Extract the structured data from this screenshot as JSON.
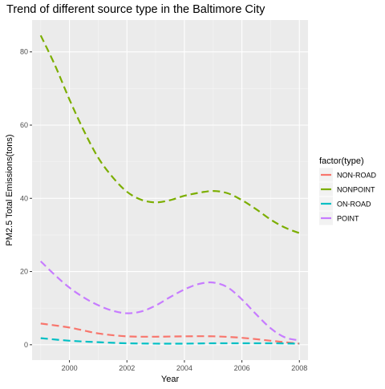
{
  "chart_data": {
    "type": "line",
    "title": "Trend of different source type in the Baltimore City",
    "xlabel": "Year",
    "ylabel": "PM2.5 Total Emissions(tons)",
    "xlim": [
      1998.7,
      2008.3
    ],
    "ylim": [
      -4.2,
      88.7
    ],
    "x_ticks": [
      2000,
      2002,
      2004,
      2006,
      2008
    ],
    "y_ticks": [
      0,
      20,
      40,
      60,
      80
    ],
    "grid": true,
    "legend": {
      "title": "factor(type)",
      "placement": "right",
      "entries": [
        "NON-ROAD",
        "NONPOINT",
        "ON-ROAD",
        "POINT"
      ]
    },
    "series": [
      {
        "name": "NON-ROAD",
        "color": "#F8766D",
        "x": [
          1999,
          2000,
          2001,
          2002,
          2003,
          2004,
          2005,
          2006,
          2007,
          2008
        ],
        "y": [
          5.8,
          4.7,
          3.1,
          2.3,
          2.2,
          2.3,
          2.3,
          1.9,
          1.1,
          0.3
        ]
      },
      {
        "name": "NONPOINT",
        "color": "#7CAE00",
        "x": [
          1999,
          1999.5,
          2000,
          2000.5,
          2001,
          2001.5,
          2002,
          2002.5,
          2003,
          2003.5,
          2004,
          2004.5,
          2005,
          2005.5,
          2006,
          2006.5,
          2007,
          2007.5,
          2008
        ],
        "y": [
          84.5,
          76.3,
          67.0,
          58.5,
          51.1,
          45.8,
          41.8,
          39.6,
          38.9,
          39.5,
          40.7,
          41.5,
          42.0,
          41.4,
          39.5,
          37.0,
          34.2,
          32.0,
          30.5
        ]
      },
      {
        "name": "ON-ROAD",
        "color": "#00BFC4",
        "x": [
          1999,
          2000,
          2001,
          2002,
          2003,
          2004,
          2005,
          2006,
          2007,
          2008
        ],
        "y": [
          1.8,
          1.1,
          0.7,
          0.4,
          0.3,
          0.3,
          0.4,
          0.4,
          0.4,
          0.3
        ]
      },
      {
        "name": "POINT",
        "color": "#C77CFF",
        "x": [
          1999,
          1999.5,
          2000,
          2000.5,
          2001,
          2001.5,
          2002,
          2002.5,
          2003,
          2003.5,
          2004,
          2004.5,
          2005,
          2005.5,
          2006,
          2006.5,
          2007,
          2007.5,
          2008
        ],
        "y": [
          22.8,
          19.0,
          15.6,
          12.9,
          10.8,
          9.3,
          8.6,
          9.1,
          10.7,
          13.0,
          15.1,
          16.6,
          17.0,
          15.7,
          12.4,
          8.3,
          4.5,
          2.0,
          1.2
        ]
      }
    ]
  }
}
